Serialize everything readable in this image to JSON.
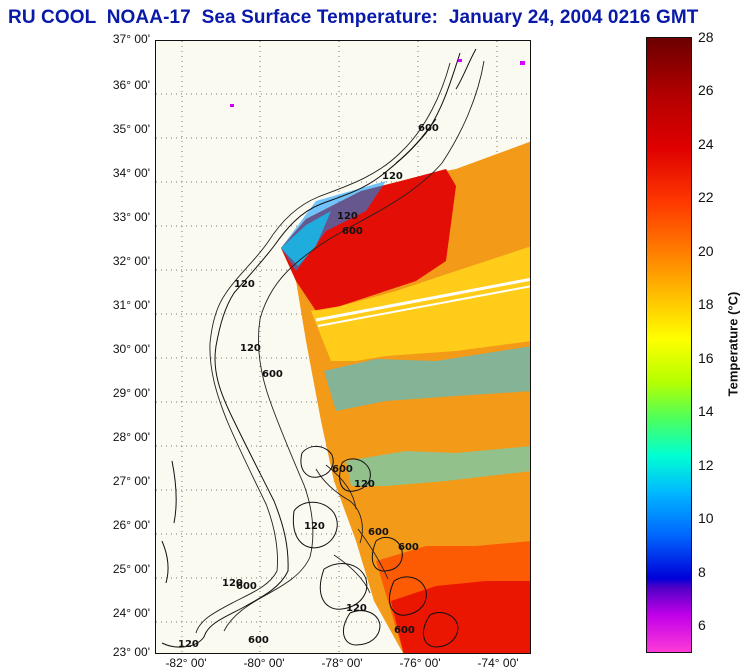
{
  "title": "RU COOL  NOAA-17  Sea Surface Temperature:  January 24, 2004 0216 GMT",
  "map": {
    "latitude_labels": [
      "37° 00'",
      "36° 00'",
      "35° 00'",
      "34° 00'",
      "33° 00'",
      "32° 00'",
      "31° 00'",
      "30° 00'",
      "29° 00'",
      "28° 00'",
      "27° 00'",
      "26° 00'",
      "25° 00'",
      "24° 00'",
      "23° 00'"
    ],
    "longitude_labels": [
      "-82° 00'",
      "-80° 00'",
      "-78° 00'",
      "-76° 00'",
      "-74° 00'"
    ],
    "contour_labels": [
      "120",
      "600"
    ],
    "grid": true
  },
  "colorbar": {
    "label": "Temperature (°C)",
    "ticks": [
      "28",
      "26",
      "24",
      "22",
      "20",
      "18",
      "16",
      "14",
      "12",
      "10",
      "8",
      "6"
    ],
    "min": 5,
    "max": 28
  }
}
